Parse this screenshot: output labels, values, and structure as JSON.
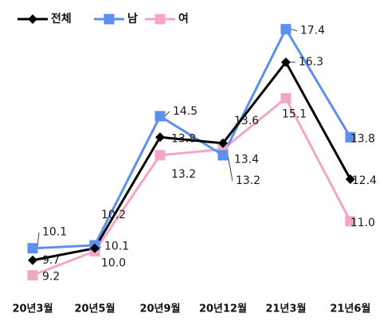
{
  "chart_data": {
    "type": "line",
    "categories": [
      "20년3월",
      "20년5월",
      "20년9월",
      "20년12월",
      "21년3월",
      "21년6월"
    ],
    "series": [
      {
        "name": "전체",
        "color": "#000000",
        "marker": "diamond",
        "values": [
          9.7,
          10.1,
          13.8,
          13.6,
          16.3,
          12.4
        ]
      },
      {
        "name": "남",
        "color": "#5b8ff0",
        "marker": "square",
        "values": [
          10.1,
          10.2,
          14.5,
          13.2,
          17.4,
          13.8
        ]
      },
      {
        "name": "여",
        "color": "#f2a6c8",
        "marker": "square",
        "values": [
          9.2,
          10.0,
          13.2,
          13.4,
          15.1,
          11.0
        ]
      }
    ],
    "data_labels": {
      "전체": [
        "9.7",
        "10.1",
        "13.8",
        "13.6",
        "16.3",
        "12.4"
      ],
      "남": [
        "10.1",
        "10.2",
        "14.5",
        "13.2",
        "17.4",
        "13.8"
      ],
      "여": [
        "9.2",
        "10.0",
        "13.2",
        "13.4",
        "15.1",
        "11.0"
      ]
    },
    "ylim": [
      8.5,
      18.0
    ],
    "grid": false,
    "legend_position": "top-left"
  }
}
